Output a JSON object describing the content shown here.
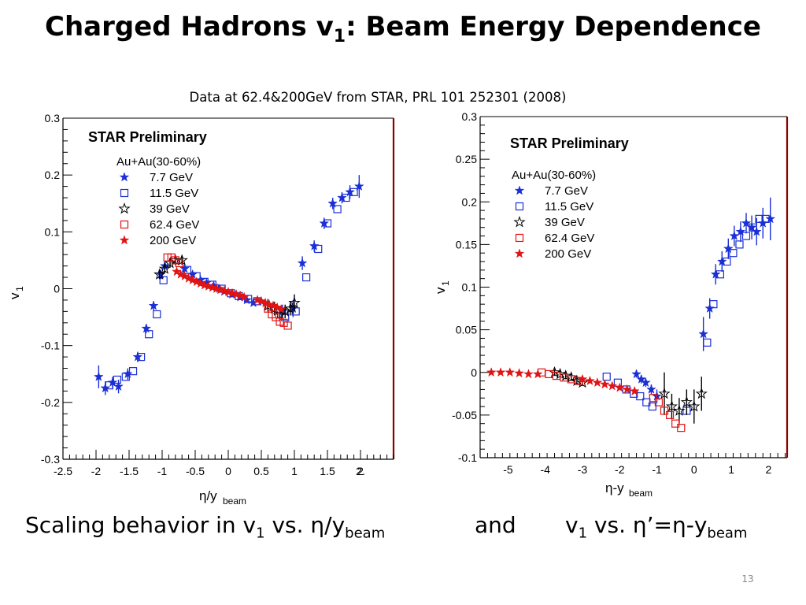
{
  "slide": {
    "title_main": "Charged Hadrons v",
    "title_sub": "1",
    "title_rest": ": Beam Energy Dependence",
    "source_note": "Data at 62.4&200GeV from STAR, PRL 101 252301 (2008)",
    "caption": {
      "part1": "Scaling behavior in v",
      "part1_sub": "1",
      "part2": " vs. η/y",
      "part2_sub": "beam",
      "and": "and",
      "part3": "v",
      "part3_sub": "1",
      "part4": " vs. η’=η-y",
      "part4_sub": "beam"
    },
    "page_number": "13"
  },
  "colors": {
    "blue": "#1a2fd6",
    "red": "#e01414",
    "black": "#000000",
    "frame_right": "#8b0000"
  },
  "chart_data": [
    {
      "type": "scatter",
      "annotation": "STAR Preliminary",
      "legend_title": "Au+Au(30-60%)",
      "legend_placement": "top-left",
      "xlabel": "η/y",
      "xlabel_sub": "beam",
      "ylabel": "v",
      "ylabel_sub": "1",
      "xlim": [
        -2.5,
        2.5
      ],
      "ylim": [
        -0.3,
        0.3
      ],
      "x_ticks": [
        "-2.5",
        "-2",
        "-1.5",
        "-1",
        "-0.5",
        "0",
        "0.5",
        "1",
        "1.5",
        "2",
        "2."
      ],
      "y_ticks": [
        "-0.3",
        "-0.2",
        "-0.1",
        "0",
        "0.1",
        "0.2",
        "0.3"
      ],
      "series": [
        {
          "name": "7.7  GeV",
          "marker": "star",
          "color": "#1a2fd6",
          "x": [
            -1.96,
            -1.86,
            -1.75,
            -1.66,
            -1.52,
            -1.37,
            -1.24,
            -1.13,
            -1.02,
            -0.96,
            -0.66,
            -0.54,
            -0.42,
            -0.33,
            -0.22,
            -0.14,
            -0.06,
            0.06,
            0.18,
            0.28,
            0.38,
            0.82,
            0.98,
            1.12,
            1.3,
            1.45,
            1.58,
            1.72,
            1.84,
            1.98
          ],
          "y": [
            -0.155,
            -0.175,
            -0.165,
            -0.172,
            -0.15,
            -0.12,
            -0.07,
            -0.03,
            0.025,
            0.04,
            0.035,
            0.025,
            0.015,
            0.01,
            0.005,
            0.0,
            -0.005,
            -0.01,
            -0.015,
            -0.02,
            -0.025,
            -0.04,
            -0.035,
            0.045,
            0.075,
            0.115,
            0.15,
            0.16,
            0.17,
            0.18
          ],
          "yerr": [
            0.02,
            0.012,
            0.01,
            0.012,
            0.01,
            0.009,
            0.008,
            0.008,
            0.008,
            0.008,
            0.005,
            0.004,
            0.004,
            0.004,
            0.003,
            0.003,
            0.003,
            0.003,
            0.003,
            0.003,
            0.004,
            0.012,
            0.015,
            0.012,
            0.01,
            0.01,
            0.01,
            0.01,
            0.012,
            0.02
          ]
        },
        {
          "name": "11.5 GeV",
          "marker": "open-square",
          "color": "#1a2fd6",
          "x": [
            -1.8,
            -1.68,
            -1.55,
            -1.44,
            -1.32,
            -1.2,
            -1.08,
            -0.98,
            -0.62,
            -0.48,
            -0.36,
            -0.24,
            -0.1,
            0.04,
            0.16,
            0.3,
            0.44,
            0.86,
            1.02,
            1.18,
            1.36,
            1.5,
            1.65,
            1.78,
            1.9
          ],
          "y": [
            -0.17,
            -0.16,
            -0.155,
            -0.145,
            -0.12,
            -0.08,
            -0.045,
            0.015,
            0.033,
            0.022,
            0.012,
            0.007,
            0.0,
            -0.008,
            -0.013,
            -0.018,
            -0.022,
            -0.05,
            -0.04,
            0.02,
            0.07,
            0.115,
            0.14,
            0.16,
            0.17
          ]
        },
        {
          "name": "39  GeV",
          "marker": "open-star",
          "color": "#000000",
          "x": [
            -1.04,
            -0.96,
            -0.88,
            -0.8,
            -0.7,
            0.6,
            0.7,
            0.78,
            0.86,
            0.94,
            1.0
          ],
          "y": [
            0.025,
            0.035,
            0.045,
            0.05,
            0.05,
            -0.03,
            -0.035,
            -0.045,
            -0.04,
            -0.035,
            -0.025
          ],
          "yerr": [
            0.008,
            0.008,
            0.008,
            0.008,
            0.008,
            0.012,
            0.012,
            0.012,
            0.012,
            0.012,
            0.015
          ]
        },
        {
          "name": "62.4 GeV",
          "marker": "open-square",
          "color": "#e01414",
          "x": [
            -0.92,
            -0.86,
            -0.8,
            -0.74,
            0.6,
            0.66,
            0.72,
            0.78,
            0.84,
            0.9
          ],
          "y": [
            0.055,
            0.055,
            0.05,
            0.045,
            -0.035,
            -0.045,
            -0.05,
            -0.058,
            -0.06,
            -0.065
          ]
        },
        {
          "name": "200  GeV",
          "marker": "star",
          "color": "#e01414",
          "x": [
            -0.78,
            -0.72,
            -0.66,
            -0.6,
            -0.54,
            -0.48,
            -0.42,
            -0.36,
            -0.3,
            -0.24,
            -0.18,
            -0.12,
            -0.06,
            0.0,
            0.06,
            0.12,
            0.18,
            0.24,
            0.44,
            0.5,
            0.56,
            0.62,
            0.68,
            0.74,
            0.8
          ],
          "y": [
            0.03,
            0.025,
            0.022,
            0.018,
            0.015,
            0.012,
            0.009,
            0.006,
            0.004,
            0.002,
            0.0,
            -0.002,
            -0.004,
            -0.006,
            -0.008,
            -0.01,
            -0.012,
            -0.015,
            -0.02,
            -0.022,
            -0.025,
            -0.028,
            -0.03,
            -0.033,
            -0.036
          ]
        }
      ]
    },
    {
      "type": "scatter",
      "annotation": "STAR Preliminary",
      "legend_title": "Au+Au(30-60%)",
      "legend_placement": "top-left",
      "xlabel": "η-y",
      "xlabel_sub": "beam",
      "ylabel": "v",
      "ylabel_sub": "1",
      "xlim": [
        -5.75,
        2.5
      ],
      "ylim": [
        -0.1,
        0.3
      ],
      "x_ticks": [
        "-5",
        "-4",
        "-3",
        "-2",
        "-1",
        "0",
        "1",
        "2"
      ],
      "y_ticks": [
        "-0.1",
        "-0.05",
        "0",
        "0.05",
        "0.1",
        "0.15",
        "0.2",
        "0.25",
        "0.3"
      ],
      "series": [
        {
          "name": "7.7  GeV",
          "marker": "star",
          "color": "#1a2fd6",
          "x": [
            -1.55,
            -1.42,
            -1.3,
            -1.15,
            -1.0,
            0.25,
            0.42,
            0.58,
            0.75,
            0.92,
            1.08,
            1.25,
            1.4,
            1.55,
            1.68,
            1.85,
            2.05
          ],
          "y": [
            -0.002,
            -0.008,
            -0.012,
            -0.02,
            -0.028,
            0.045,
            0.075,
            0.115,
            0.13,
            0.145,
            0.16,
            0.165,
            0.175,
            0.17,
            0.165,
            0.175,
            0.18
          ],
          "yerr": [
            0.004,
            0.005,
            0.005,
            0.006,
            0.008,
            0.02,
            0.012,
            0.012,
            0.012,
            0.012,
            0.012,
            0.012,
            0.012,
            0.014,
            0.016,
            0.018,
            0.025
          ]
        },
        {
          "name": "11.5 GeV",
          "marker": "open-square",
          "color": "#1a2fd6",
          "x": [
            -2.35,
            -2.05,
            -1.82,
            -1.62,
            -1.45,
            -1.28,
            -1.12,
            -0.2,
            0.35,
            0.52,
            0.7,
            0.88,
            1.05,
            1.22,
            1.4,
            1.58,
            1.75,
            1.92
          ],
          "y": [
            -0.005,
            -0.012,
            -0.02,
            -0.025,
            -0.028,
            -0.035,
            -0.04,
            -0.045,
            0.035,
            0.08,
            0.115,
            0.13,
            0.14,
            0.15,
            0.16,
            0.17,
            0.18,
            0.18
          ]
        },
        {
          "name": "39  GeV",
          "marker": "open-star",
          "color": "#000000",
          "x": [
            -3.75,
            -3.6,
            -3.45,
            -3.3,
            -3.15,
            -3.0,
            -0.8,
            -0.6,
            -0.4,
            -0.2,
            0.0,
            0.2
          ],
          "y": [
            0.0,
            -0.002,
            -0.004,
            -0.006,
            -0.01,
            -0.012,
            -0.025,
            -0.04,
            -0.045,
            -0.035,
            -0.04,
            -0.025
          ],
          "yerr": [
            0.004,
            0.004,
            0.004,
            0.004,
            0.004,
            0.004,
            0.025,
            0.015,
            0.015,
            0.015,
            0.02,
            0.02
          ]
        },
        {
          "name": "62.4 GeV",
          "marker": "open-square",
          "color": "#e01414",
          "x": [
            -4.1,
            -3.9,
            -3.7,
            -3.5,
            -3.3,
            -3.1,
            -1.1,
            -0.95,
            -0.8,
            -0.65,
            -0.5,
            -0.35
          ],
          "y": [
            0.0,
            -0.002,
            -0.004,
            -0.006,
            -0.008,
            -0.01,
            -0.03,
            -0.035,
            -0.045,
            -0.05,
            -0.06,
            -0.065
          ]
        },
        {
          "name": "200  GeV",
          "marker": "star",
          "color": "#e01414",
          "x": [
            -5.45,
            -5.2,
            -4.95,
            -4.7,
            -4.45,
            -4.2,
            -3.0,
            -2.8,
            -2.6,
            -2.4,
            -2.2,
            -2.0,
            -1.8,
            -1.6
          ],
          "y": [
            0.0,
            0.0,
            0.0,
            -0.001,
            -0.002,
            -0.002,
            -0.008,
            -0.01,
            -0.012,
            -0.014,
            -0.016,
            -0.018,
            -0.02,
            -0.022
          ]
        }
      ]
    }
  ]
}
